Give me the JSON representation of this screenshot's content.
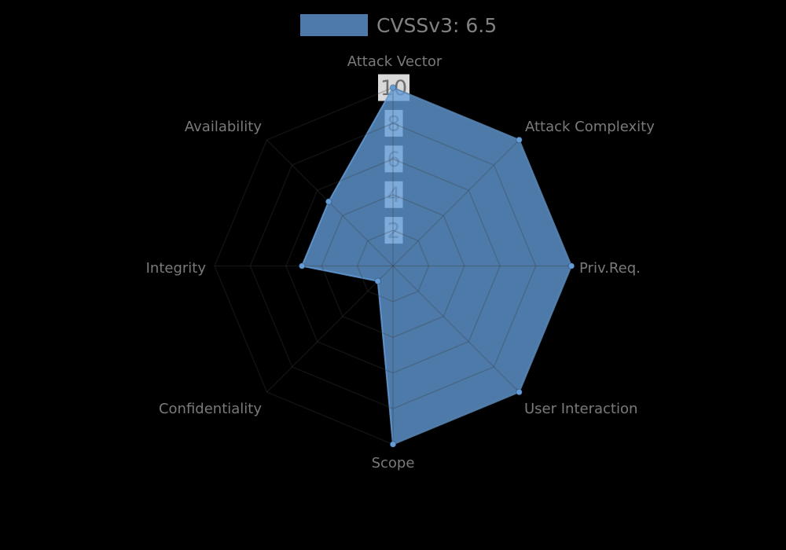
{
  "legend": {
    "label": "CVSSv3: 6.5",
    "swatch_color": "#639cd7",
    "swatch_opacity": 0.78,
    "text_color": "#828282"
  },
  "chart_data": {
    "type": "radar",
    "title": "",
    "categories": [
      "Attack Vector",
      "Attack Complexity",
      "Priv.Req.",
      "User Interaction",
      "Scope",
      "Confidentiality",
      "Integrity",
      "Availability"
    ],
    "series": [
      {
        "name": "CVSSv3: 6.5",
        "values": [
          10,
          10,
          10,
          10,
          10,
          1.2,
          5.1,
          5.1
        ]
      }
    ],
    "radial_ticks": [
      2,
      4,
      6,
      8,
      10
    ],
    "range": [
      0,
      10
    ],
    "grid": true,
    "grid_style": "spider-polygon",
    "legend_position": "top-center",
    "colors": {
      "series_line": "#639cd7",
      "series_fill": "#639cd7",
      "series_fill_opacity": 0.78,
      "axis_label": "#7a7a7a",
      "tick_label": "#6e6e6e",
      "tick_box": "#ffffff",
      "grid_line": "rgba(60,60,60,0.30)",
      "background": "#000000"
    }
  }
}
